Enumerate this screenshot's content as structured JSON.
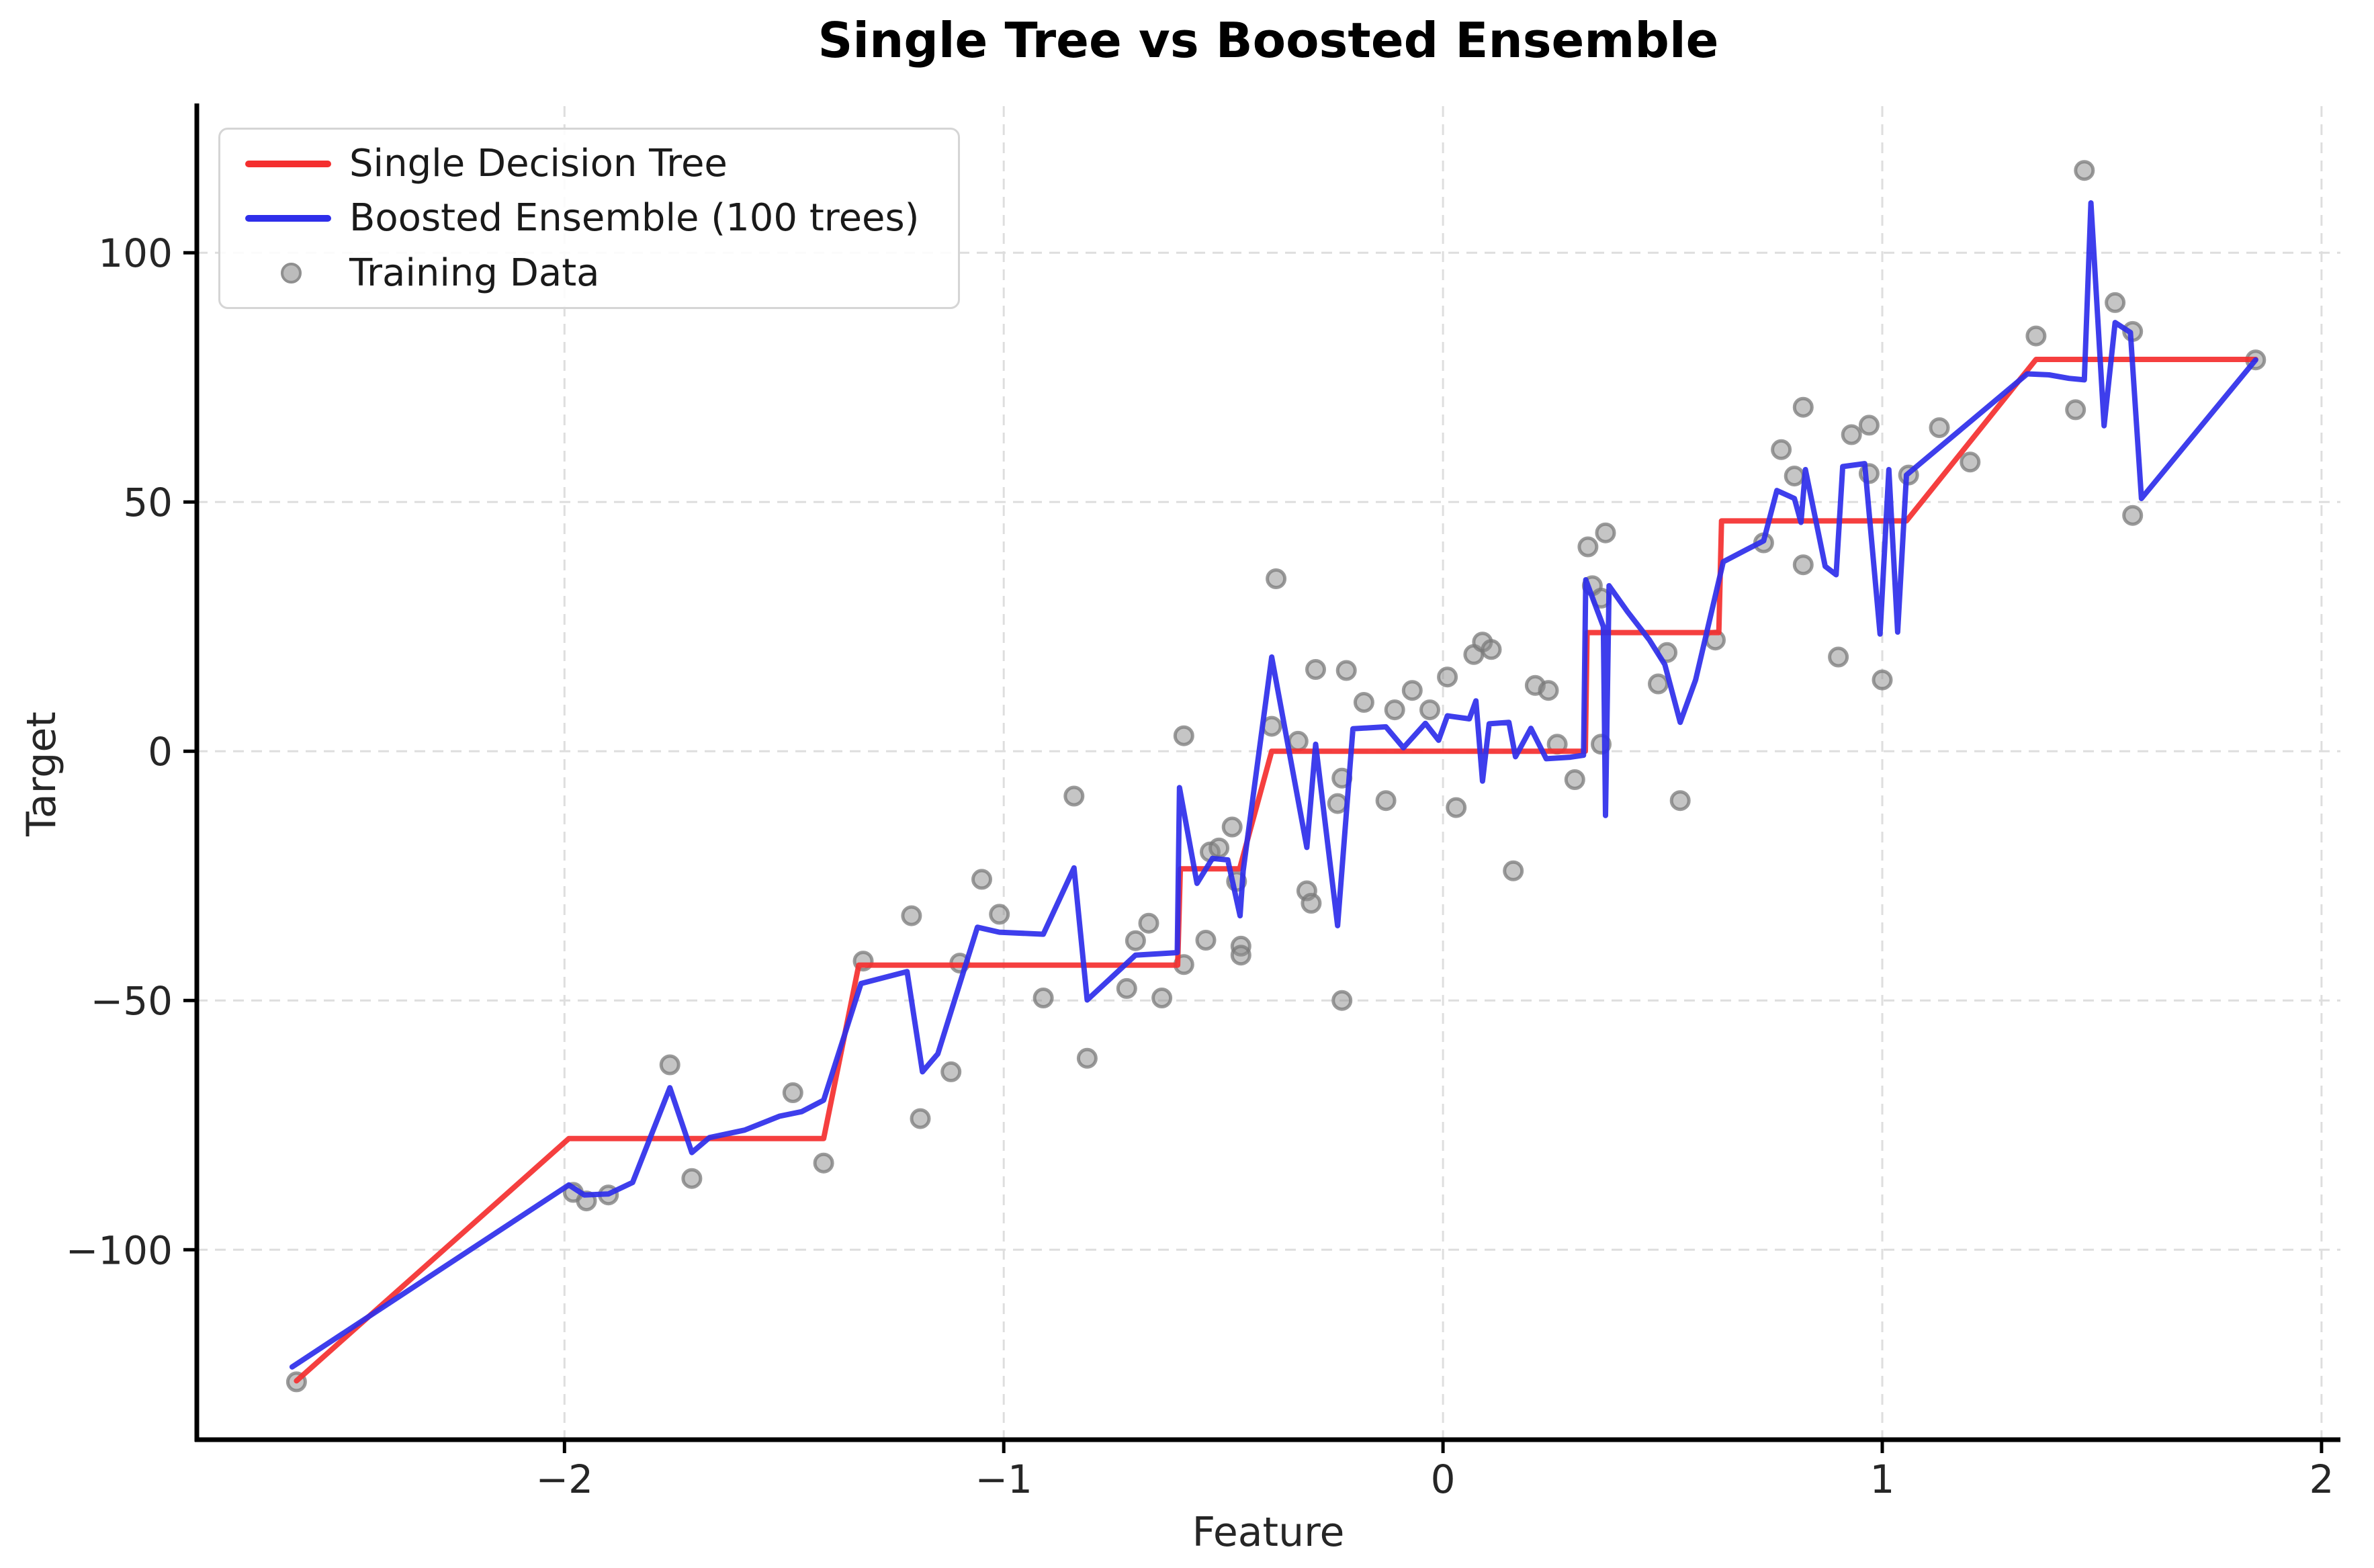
{
  "chart_data": {
    "type": "line",
    "title": "Single Tree vs Boosted Ensemble",
    "xlabel": "Feature",
    "ylabel": "Target",
    "xlim": [
      -2.837,
      2.043
    ],
    "ylim": [
      -138.1,
      129.4
    ],
    "xticks": [
      -2,
      -1,
      0,
      1,
      2
    ],
    "xtick_labels": [
      "−2",
      "−1",
      "0",
      "1",
      "2"
    ],
    "yticks": [
      -100,
      -50,
      0,
      50,
      100
    ],
    "ytick_labels": [
      "−100",
      "−50",
      "0",
      "50",
      "100"
    ],
    "grid": true,
    "legend_position": "upper left",
    "colors": {
      "grid": "#dedede",
      "spine": "#000000",
      "tick_text": "#262626",
      "red": "#f42f2f",
      "blue": "#2e2eea",
      "scatter_fill": "#8c8c8c",
      "scatter_edge": "#7a7a7a"
    },
    "series": [
      {
        "name": "Single Decision Tree",
        "kind": "line",
        "color": "#f42f2f",
        "points": [
          [
            -2.61,
            -126.3
          ],
          [
            -1.99,
            -77.7
          ],
          [
            -1.41,
            -77.7
          ],
          [
            -1.33,
            -42.9
          ],
          [
            -0.604,
            -42.9
          ],
          [
            -0.598,
            -23.6
          ],
          [
            -0.463,
            -23.6
          ],
          [
            -0.39,
            0.0
          ],
          [
            0.324,
            0.0
          ],
          [
            0.328,
            23.8
          ],
          [
            0.628,
            23.8
          ],
          [
            0.634,
            46.2
          ],
          [
            1.055,
            46.2
          ],
          [
            1.35,
            78.6
          ],
          [
            1.85,
            78.6
          ]
        ]
      },
      {
        "name": "Boosted Ensemble (100 trees)",
        "kind": "line",
        "color": "#2e2eea",
        "points": [
          [
            -2.62,
            -123.5
          ],
          [
            -1.99,
            -87.0
          ],
          [
            -1.955,
            -89.0
          ],
          [
            -1.9,
            -88.8
          ],
          [
            -1.845,
            -86.5
          ],
          [
            -1.76,
            -67.5
          ],
          [
            -1.71,
            -80.5
          ],
          [
            -1.67,
            -77.5
          ],
          [
            -1.59,
            -76.0
          ],
          [
            -1.51,
            -73.2
          ],
          [
            -1.46,
            -72.3
          ],
          [
            -1.41,
            -70.0
          ],
          [
            -1.325,
            -46.6
          ],
          [
            -1.22,
            -44.2
          ],
          [
            -1.185,
            -64.3
          ],
          [
            -1.15,
            -60.7
          ],
          [
            -1.06,
            -35.3
          ],
          [
            -1.01,
            -36.3
          ],
          [
            -0.91,
            -36.7
          ],
          [
            -0.84,
            -23.4
          ],
          [
            -0.81,
            -49.9
          ],
          [
            -0.7,
            -40.9
          ],
          [
            -0.605,
            -40.4
          ],
          [
            -0.6,
            -7.3
          ],
          [
            -0.56,
            -26.5
          ],
          [
            -0.525,
            -21.5
          ],
          [
            -0.49,
            -21.8
          ],
          [
            -0.462,
            -33.0
          ],
          [
            -0.455,
            -24.0
          ],
          [
            -0.39,
            18.9
          ],
          [
            -0.31,
            -19.3
          ],
          [
            -0.29,
            1.4
          ],
          [
            -0.24,
            -35.0
          ],
          [
            -0.205,
            4.5
          ],
          [
            -0.13,
            4.9
          ],
          [
            -0.09,
            0.7
          ],
          [
            -0.04,
            5.6
          ],
          [
            -0.01,
            2.2
          ],
          [
            0.01,
            7.1
          ],
          [
            0.06,
            6.5
          ],
          [
            0.075,
            10.1
          ],
          [
            0.09,
            -6.0
          ],
          [
            0.105,
            5.5
          ],
          [
            0.15,
            5.8
          ],
          [
            0.165,
            -1.1
          ],
          [
            0.2,
            4.6
          ],
          [
            0.235,
            -1.5
          ],
          [
            0.29,
            -1.2
          ],
          [
            0.32,
            -0.8
          ],
          [
            0.325,
            34.4
          ],
          [
            0.35,
            28.5
          ],
          [
            0.365,
            25.0
          ],
          [
            0.37,
            -12.9
          ],
          [
            0.378,
            33.2
          ],
          [
            0.42,
            28.0
          ],
          [
            0.47,
            22.3
          ],
          [
            0.505,
            17.4
          ],
          [
            0.54,
            5.8
          ],
          [
            0.575,
            14.3
          ],
          [
            0.638,
            38.0
          ],
          [
            0.69,
            40.4
          ],
          [
            0.73,
            42.2
          ],
          [
            0.76,
            52.3
          ],
          [
            0.8,
            50.7
          ],
          [
            0.815,
            45.9
          ],
          [
            0.825,
            56.5
          ],
          [
            0.87,
            37.1
          ],
          [
            0.895,
            35.4
          ],
          [
            0.91,
            57.1
          ],
          [
            0.96,
            57.7
          ],
          [
            0.995,
            23.5
          ],
          [
            1.015,
            56.5
          ],
          [
            1.035,
            23.9
          ],
          [
            1.055,
            55.4
          ],
          [
            1.33,
            75.7
          ],
          [
            1.38,
            75.5
          ],
          [
            1.425,
            74.8
          ],
          [
            1.46,
            74.5
          ],
          [
            1.475,
            110.0
          ],
          [
            1.505,
            65.3
          ],
          [
            1.53,
            86.0
          ],
          [
            1.565,
            84.0
          ],
          [
            1.59,
            50.7
          ],
          [
            1.85,
            78.5
          ]
        ]
      },
      {
        "name": "Training Data",
        "kind": "scatter",
        "color": "#8c8c8c",
        "points": [
          [
            -2.61,
            -126.5
          ],
          [
            -1.98,
            -88.5
          ],
          [
            -1.95,
            -90.2
          ],
          [
            -1.9,
            -89.0
          ],
          [
            -1.76,
            -62.9
          ],
          [
            -1.71,
            -85.7
          ],
          [
            -1.48,
            -68.5
          ],
          [
            -1.41,
            -82.6
          ],
          [
            -1.32,
            -42.1
          ],
          [
            -1.21,
            -33.0
          ],
          [
            -1.19,
            -73.7
          ],
          [
            -1.12,
            -64.3
          ],
          [
            -1.1,
            -42.5
          ],
          [
            -1.05,
            -25.7
          ],
          [
            -1.01,
            -32.7
          ],
          [
            -0.91,
            -49.5
          ],
          [
            -0.84,
            -9.0
          ],
          [
            -0.81,
            -61.6
          ],
          [
            -0.72,
            -47.6
          ],
          [
            -0.7,
            -38.0
          ],
          [
            -0.67,
            -34.5
          ],
          [
            -0.64,
            -49.5
          ],
          [
            -0.59,
            -42.8
          ],
          [
            -0.59,
            3.1
          ],
          [
            -0.54,
            -37.9
          ],
          [
            -0.53,
            -20.2
          ],
          [
            -0.51,
            -19.4
          ],
          [
            -0.48,
            -15.2
          ],
          [
            -0.47,
            -26.1
          ],
          [
            -0.46,
            -39.1
          ],
          [
            -0.46,
            -40.9
          ],
          [
            -0.39,
            5.0
          ],
          [
            -0.38,
            34.6
          ],
          [
            -0.33,
            2.0
          ],
          [
            -0.31,
            -28.0
          ],
          [
            -0.3,
            -30.5
          ],
          [
            -0.29,
            16.4
          ],
          [
            -0.24,
            -10.5
          ],
          [
            -0.23,
            -50.0
          ],
          [
            -0.23,
            -5.4
          ],
          [
            -0.22,
            16.2
          ],
          [
            -0.18,
            9.8
          ],
          [
            -0.13,
            -9.9
          ],
          [
            -0.11,
            8.3
          ],
          [
            -0.07,
            12.2
          ],
          [
            -0.03,
            8.3
          ],
          [
            0.01,
            14.9
          ],
          [
            0.03,
            -11.3
          ],
          [
            0.07,
            19.4
          ],
          [
            0.09,
            21.9
          ],
          [
            0.11,
            20.4
          ],
          [
            0.16,
            -24.0
          ],
          [
            0.21,
            13.2
          ],
          [
            0.24,
            12.2
          ],
          [
            0.26,
            1.4
          ],
          [
            0.3,
            -5.7
          ],
          [
            0.33,
            41.0
          ],
          [
            0.34,
            33.2
          ],
          [
            0.36,
            30.7
          ],
          [
            0.36,
            1.4
          ],
          [
            0.37,
            43.8
          ],
          [
            0.49,
            13.5
          ],
          [
            0.51,
            19.8
          ],
          [
            0.54,
            -9.9
          ],
          [
            0.62,
            22.3
          ],
          [
            0.73,
            41.8
          ],
          [
            0.77,
            60.5
          ],
          [
            0.8,
            55.2
          ],
          [
            0.82,
            69.0
          ],
          [
            0.82,
            37.4
          ],
          [
            0.9,
            18.9
          ],
          [
            0.93,
            63.5
          ],
          [
            0.97,
            65.4
          ],
          [
            0.97,
            55.7
          ],
          [
            1.0,
            14.3
          ],
          [
            1.06,
            55.4
          ],
          [
            1.13,
            64.9
          ],
          [
            1.2,
            58.0
          ],
          [
            1.35,
            83.3
          ],
          [
            1.44,
            68.5
          ],
          [
            1.46,
            116.5
          ],
          [
            1.53,
            90.0
          ],
          [
            1.57,
            84.2
          ],
          [
            1.57,
            47.3
          ],
          [
            1.85,
            78.5
          ]
        ]
      }
    ]
  }
}
